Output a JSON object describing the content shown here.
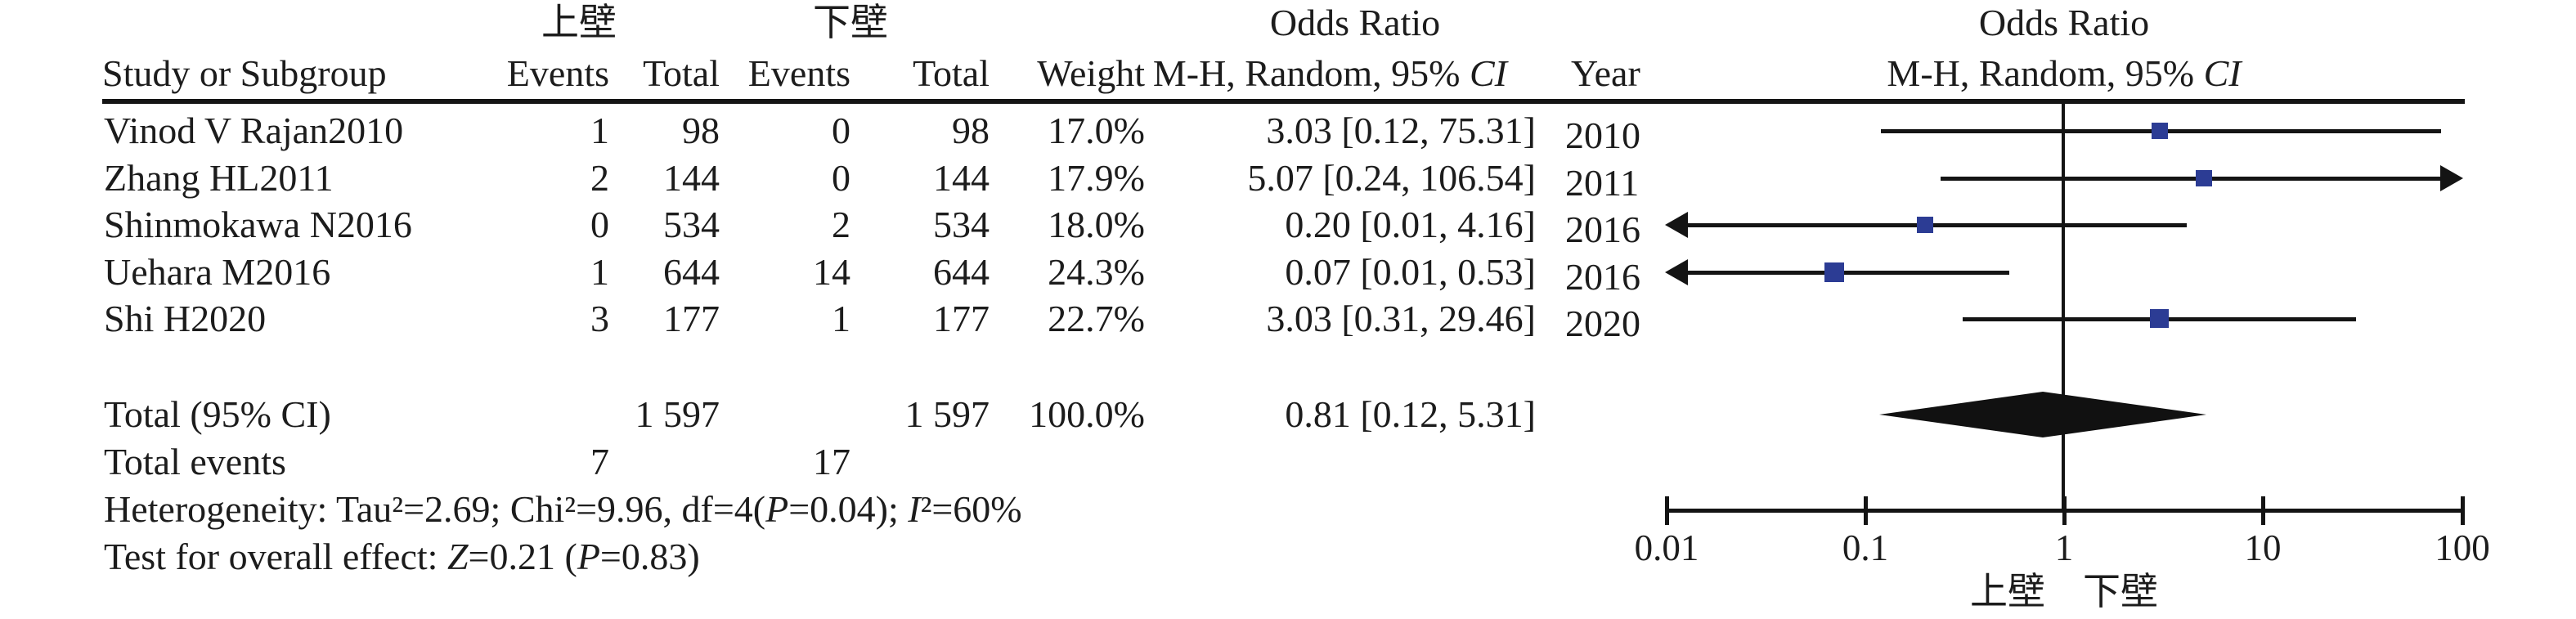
{
  "figure": {
    "group1_label": "上壁",
    "group2_label": "下壁",
    "or_header_table": "Odds Ratio",
    "or_header_plot": "Odds Ratio",
    "headers": {
      "study": "Study or Subgroup",
      "events1": "Events",
      "total1": "Total",
      "events2": "Events",
      "total2": "Total",
      "weight": "Weight",
      "mh": [
        {
          "t": "M-H, Random, 95% "
        },
        {
          "t": "CI",
          "s": "i"
        }
      ],
      "mh_plot": [
        {
          "t": "M-H, Random, 95% "
        },
        {
          "t": "CI",
          "s": "i"
        }
      ],
      "year": "Year"
    },
    "rows": [
      {
        "study": "Vinod V Rajan2010",
        "events1": "1",
        "total1": "98",
        "events2": "0",
        "total2": "98",
        "weight": "17.0%",
        "or_ci": "3.03 [0.12, 75.31]",
        "year": "2010"
      },
      {
        "study": "Zhang HL2011",
        "events1": "2",
        "total1": "144",
        "events2": "0",
        "total2": "144",
        "weight": "17.9%",
        "or_ci": "5.07 [0.24, 106.54]",
        "year": "2011"
      },
      {
        "study": "Shinmokawa N2016",
        "events1": "0",
        "total1": "534",
        "events2": "2",
        "total2": "534",
        "weight": "18.0%",
        "or_ci": "0.20 [0.01, 4.16]",
        "year": "2016"
      },
      {
        "study": "Uehara M2016",
        "events1": "1",
        "total1": "644",
        "events2": "14",
        "total2": "644",
        "weight": "24.3%",
        "or_ci": "0.07 [0.01, 0.53]",
        "year": "2016"
      },
      {
        "study": "Shi H2020",
        "events1": "3",
        "total1": "177",
        "events2": "1",
        "total2": "177",
        "weight": "22.7%",
        "or_ci": "3.03 [0.31, 29.46]",
        "year": "2020"
      }
    ],
    "total_row": {
      "label": "Total (95% CI)",
      "total1": "1 597",
      "total2": "1 597",
      "weight": "100.0%",
      "or_ci": "0.81 [0.12, 5.31]"
    },
    "total_events_row": {
      "label": "Total events",
      "events1": "7",
      "events2": "17"
    },
    "heterogeneity": [
      {
        "t": "Heterogeneity: Tau²=2.69; Chi²=9.96, df=4("
      },
      {
        "t": "P",
        "s": "i"
      },
      {
        "t": "=0.04); "
      },
      {
        "t": "I",
        "s": "i"
      },
      {
        "t": "²=60%"
      }
    ],
    "overall_test": [
      {
        "t": "Test for overall effect: "
      },
      {
        "t": "Z",
        "s": "i"
      },
      {
        "t": "=0.21 ("
      },
      {
        "t": "P",
        "s": "i"
      },
      {
        "t": "=0.83)"
      }
    ],
    "axis": {
      "tick0": "0.01",
      "tick1": "0.1",
      "tick2": "1",
      "tick3": "10",
      "tick4": "100",
      "label": "上壁　下壁"
    }
  },
  "chart_data": {
    "type": "scatter",
    "subtype": "forest-plot",
    "title": "Odds Ratio",
    "effect_model": "M-H, Random, 95% CI",
    "x_scale": "log",
    "xlim": [
      0.01,
      100
    ],
    "x_ticks": [
      0.01,
      0.1,
      1,
      10,
      100
    ],
    "x_axis_label_left": "上壁",
    "x_axis_label_right": "下壁",
    "group1_label": "上壁",
    "group2_label": "下壁",
    "studies": [
      {
        "name": "Vinod V Rajan2010",
        "events1": 1,
        "total1": 98,
        "events2": 0,
        "total2": 98,
        "weight_pct": 17.0,
        "or": 3.03,
        "ci_low": 0.12,
        "ci_high": 75.31,
        "year": 2010
      },
      {
        "name": "Zhang HL2011",
        "events1": 2,
        "total1": 144,
        "events2": 0,
        "total2": 144,
        "weight_pct": 17.9,
        "or": 5.07,
        "ci_low": 0.24,
        "ci_high": 106.54,
        "year": 2011,
        "ci_high_clipped_arrow": true
      },
      {
        "name": "Shinmokawa N2016",
        "events1": 0,
        "total1": 534,
        "events2": 2,
        "total2": 534,
        "weight_pct": 18.0,
        "or": 0.2,
        "ci_low": 0.01,
        "ci_high": 4.16,
        "year": 2016,
        "ci_low_clipped_arrow": true
      },
      {
        "name": "Uehara M2016",
        "events1": 1,
        "total1": 644,
        "events2": 14,
        "total2": 644,
        "weight_pct": 24.3,
        "or": 0.07,
        "ci_low": 0.01,
        "ci_high": 0.53,
        "year": 2016,
        "ci_low_clipped_arrow": true
      },
      {
        "name": "Shi H2020",
        "events1": 3,
        "total1": 177,
        "events2": 1,
        "total2": 177,
        "weight_pct": 22.7,
        "or": 3.03,
        "ci_low": 0.31,
        "ci_high": 29.46,
        "year": 2020
      }
    ],
    "overall": {
      "label": "Total (95% CI)",
      "total1": 1597,
      "total2": 1597,
      "weight_pct": 100.0,
      "or": 0.81,
      "ci_low": 0.12,
      "ci_high": 5.31,
      "total_events1": 7,
      "total_events2": 17
    },
    "heterogeneity": {
      "tau2": 2.69,
      "chi2": 9.96,
      "df": 4,
      "p": 0.04,
      "i2_pct": 60
    },
    "overall_effect_test": {
      "z": 0.21,
      "p": 0.83
    },
    "marker_color": "#2c3c94",
    "line_color": "#141414"
  }
}
